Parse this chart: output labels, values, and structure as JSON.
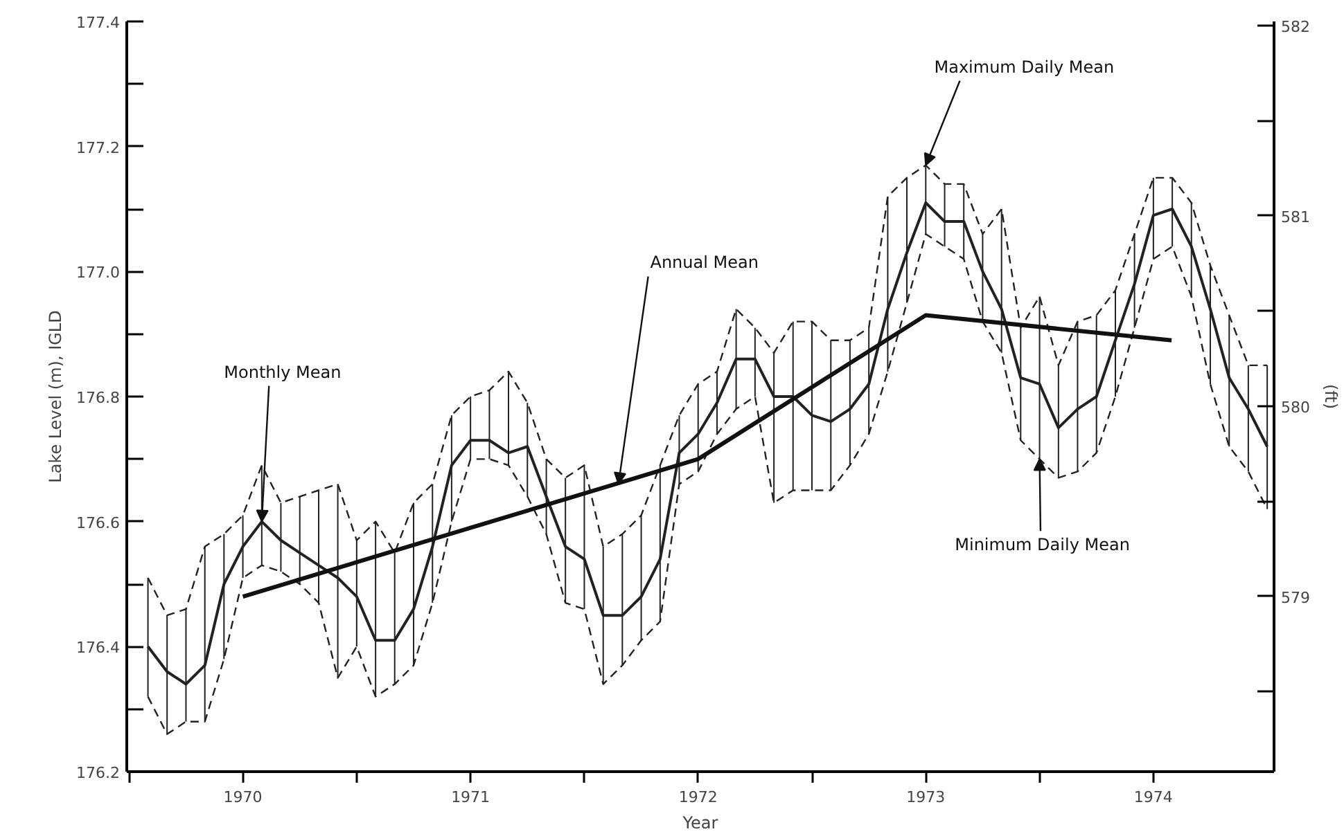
{
  "chart_data": {
    "type": "line",
    "xlabel": "Year",
    "ylabel": "Lake Level (m), IGLD",
    "y2label": "(ft)",
    "xlim": [
      1969.49,
      1974.53
    ],
    "ylim": [
      176.2,
      177.4
    ],
    "y2lim": [
      578.08,
      582.02
    ],
    "xticks": [
      {
        "value": 1969.5,
        "label": null
      },
      1970,
      {
        "value": 1970.5,
        "label": null
      },
      1971,
      {
        "value": 1971.5,
        "label": null
      },
      1972,
      {
        "value": 1972.5,
        "label": null
      },
      1973,
      {
        "value": 1973.5,
        "label": null
      },
      1974
    ],
    "yticks": [
      176.2,
      {
        "value": 176.3,
        "label": null
      },
      176.4,
      {
        "value": 176.5,
        "label": null
      },
      176.6,
      {
        "value": 176.7,
        "label": null
      },
      176.8,
      {
        "value": 176.9,
        "label": null
      },
      {
        "value": 177.0,
        "label": "177.0"
      },
      {
        "value": 177.1,
        "label": null
      },
      177.2,
      {
        "value": 177.3,
        "label": null
      },
      177.4
    ],
    "y2ticks": [
      {
        "value": 578.5,
        "label": null
      },
      579,
      {
        "value": 579.5,
        "label": null
      },
      580,
      {
        "value": 580.5,
        "label": null
      },
      581,
      {
        "value": 581.5,
        "label": null
      },
      582
    ],
    "grid": false,
    "marker": "none",
    "line_style": "solid",
    "x": [
      1969.583,
      1969.667,
      1969.75,
      1969.833,
      1969.917,
      1970,
      1970.083,
      1970.167,
      1970.25,
      1970.333,
      1970.417,
      1970.5,
      1970.583,
      1970.667,
      1970.75,
      1970.833,
      1970.917,
      1971,
      1971.083,
      1971.167,
      1971.25,
      1971.333,
      1971.417,
      1971.5,
      1971.583,
      1971.667,
      1971.75,
      1971.833,
      1971.917,
      1972,
      1972.083,
      1972.167,
      1972.25,
      1972.333,
      1972.417,
      1972.5,
      1972.583,
      1972.667,
      1972.75,
      1972.833,
      1972.917,
      1973,
      1973.083,
      1973.167,
      1973.25,
      1973.333,
      1973.417,
      1973.5,
      1973.583,
      1973.667,
      1973.75,
      1973.833,
      1973.917,
      1974,
      1974.083,
      1974.167,
      1974.25,
      1974.333,
      1974.417,
      1974.5
    ],
    "series": [
      {
        "color": "#222222",
        "values": [
          176.4,
          176.36,
          176.34,
          176.37,
          176.5,
          176.56,
          176.6,
          176.57,
          176.55,
          176.53,
          176.51,
          176.48,
          176.41,
          176.41,
          176.46,
          176.56,
          176.69,
          176.73,
          176.73,
          176.71,
          176.72,
          176.64,
          176.56,
          176.54,
          176.45,
          176.45,
          176.48,
          176.54,
          176.71,
          176.74,
          176.79,
          176.86,
          176.86,
          176.8,
          176.8,
          176.77,
          176.76,
          176.78,
          176.82,
          176.94,
          177.03,
          177.11,
          177.08,
          177.08,
          177.0,
          176.94,
          176.83,
          176.82,
          176.75,
          176.78,
          176.8,
          176.89,
          176.98,
          177.09,
          177.1,
          177.04,
          176.94,
          176.83,
          176.78,
          176.72
        ],
        "errors": [
          [
            176.32,
            176.51
          ],
          [
            176.26,
            176.45
          ],
          [
            176.28,
            176.46
          ],
          [
            176.28,
            176.56
          ],
          [
            176.38,
            176.58
          ],
          [
            176.51,
            176.61
          ],
          [
            176.53,
            176.69
          ],
          [
            176.52,
            176.63
          ],
          [
            176.5,
            176.64
          ],
          [
            176.47,
            176.65
          ],
          [
            176.35,
            176.66
          ],
          [
            176.4,
            176.57
          ],
          [
            176.32,
            176.6
          ],
          [
            176.34,
            176.55
          ],
          [
            176.37,
            176.63
          ],
          [
            176.47,
            176.66
          ],
          [
            176.6,
            176.77
          ],
          [
            176.7,
            176.8
          ],
          [
            176.7,
            176.81
          ],
          [
            176.69,
            176.84
          ],
          [
            176.64,
            176.79
          ],
          [
            176.58,
            176.7
          ],
          [
            176.47,
            176.67
          ],
          [
            176.46,
            176.69
          ],
          [
            176.34,
            176.56
          ],
          [
            176.37,
            176.58
          ],
          [
            176.41,
            176.61
          ],
          [
            176.44,
            176.69
          ],
          [
            176.66,
            176.77
          ],
          [
            176.68,
            176.82
          ],
          [
            176.74,
            176.84
          ],
          [
            176.78,
            176.94
          ],
          [
            176.8,
            176.91
          ],
          [
            176.63,
            176.87
          ],
          [
            176.65,
            176.92
          ],
          [
            176.65,
            176.92
          ],
          [
            176.65,
            176.89
          ],
          [
            176.69,
            176.89
          ],
          [
            176.74,
            176.91
          ],
          [
            176.84,
            177.12
          ],
          [
            176.95,
            177.15
          ],
          [
            177.06,
            177.17
          ],
          [
            177.04,
            177.14
          ],
          [
            177.02,
            177.14
          ],
          [
            176.92,
            177.06
          ],
          [
            176.87,
            177.1
          ],
          [
            176.73,
            176.91
          ],
          [
            176.7,
            176.96
          ],
          [
            176.67,
            176.85
          ],
          [
            176.68,
            176.92
          ],
          [
            176.71,
            176.93
          ],
          [
            176.8,
            176.97
          ],
          [
            176.91,
            177.06
          ],
          [
            177.02,
            177.15
          ],
          [
            177.04,
            177.15
          ],
          [
            176.96,
            177.11
          ],
          [
            176.82,
            177.01
          ],
          [
            176.72,
            176.93
          ],
          [
            176.68,
            176.85
          ],
          [
            176.62,
            176.85
          ]
        ]
      },
      {
        "color": "#222222",
        "line_style": "dashed",
        "values": [
          176.51,
          176.45,
          176.46,
          176.56,
          176.58,
          176.61,
          176.69,
          176.63,
          176.64,
          176.65,
          176.66,
          176.57,
          176.6,
          176.55,
          176.63,
          176.66,
          176.77,
          176.8,
          176.81,
          176.84,
          176.79,
          176.7,
          176.67,
          176.69,
          176.56,
          176.58,
          176.61,
          176.69,
          176.77,
          176.82,
          176.84,
          176.94,
          176.91,
          176.87,
          176.92,
          176.92,
          176.89,
          176.89,
          176.91,
          177.12,
          177.15,
          177.17,
          177.14,
          177.14,
          177.06,
          177.1,
          176.91,
          176.96,
          176.85,
          176.92,
          176.93,
          176.97,
          177.06,
          177.15,
          177.15,
          177.11,
          177.01,
          176.93,
          176.85,
          176.85
        ]
      },
      {
        "color": "#222222",
        "line_style": "dashed",
        "values": [
          176.32,
          176.26,
          176.28,
          176.28,
          176.38,
          176.51,
          176.53,
          176.52,
          176.5,
          176.47,
          176.35,
          176.4,
          176.32,
          176.34,
          176.37,
          176.47,
          176.6,
          176.7,
          176.7,
          176.69,
          176.64,
          176.58,
          176.47,
          176.46,
          176.34,
          176.37,
          176.41,
          176.44,
          176.66,
          176.68,
          176.74,
          176.78,
          176.8,
          176.63,
          176.65,
          176.65,
          176.65,
          176.69,
          176.74,
          176.84,
          176.95,
          177.06,
          177.04,
          177.02,
          176.92,
          176.87,
          176.73,
          176.7,
          176.67,
          176.68,
          176.71,
          176.8,
          176.91,
          177.02,
          177.04,
          176.96,
          176.82,
          176.72,
          176.68,
          176.62
        ]
      },
      {
        "color": "#111111",
        "x": [
          1970,
          1971,
          1972,
          1973,
          1974.08
        ],
        "values": [
          176.48,
          176.59,
          176.7,
          176.93,
          176.89
        ]
      }
    ],
    "annotations": [
      {
        "text": "Monthly Mean",
        "x": 1970.083,
        "y": 176.6
      },
      {
        "text": "Annual Mean",
        "x": 1971.65,
        "y": 176.66
      },
      {
        "text": "Maximum Daily Mean",
        "x": 1973,
        "y": 177.17
      },
      {
        "text": "Minimum Daily Mean",
        "x": 1973.5,
        "y": 176.7
      }
    ]
  }
}
